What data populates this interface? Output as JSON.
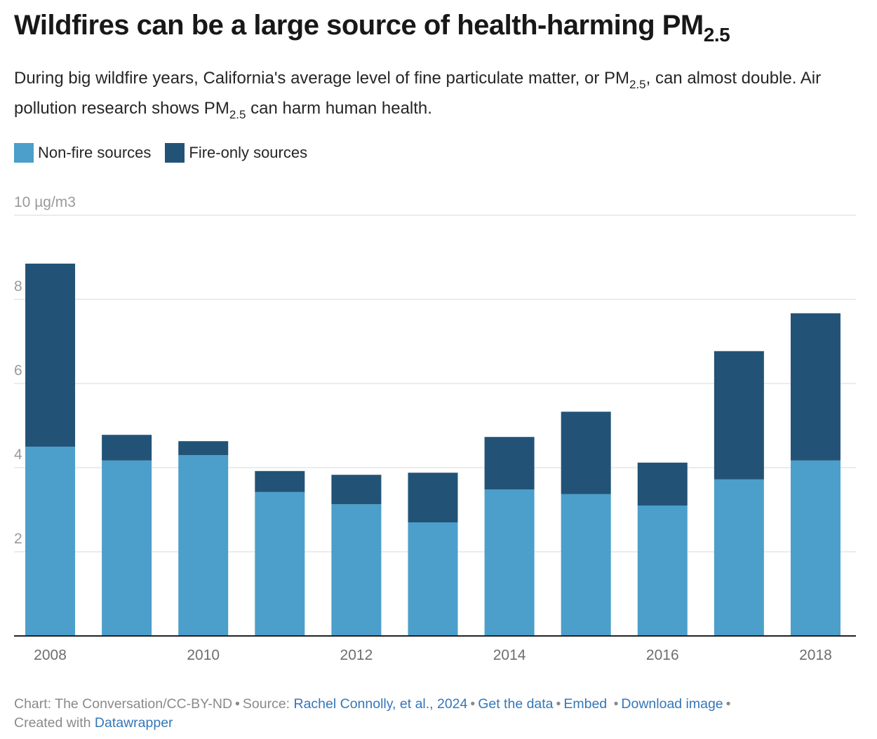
{
  "header": {
    "title_main": "Wildfires can be a large source of health-harming PM",
    "title_sub": "2.5",
    "subtitle_part1": "During big wildfire years, California's average level of fine particulate matter, or PM",
    "subtitle_sub1": "2.5",
    "subtitle_part2": ", can almost double. Air pollution research shows PM",
    "subtitle_sub2": "2.5",
    "subtitle_part3": " can harm human health."
  },
  "legend": [
    {
      "label": "Non-fire sources",
      "color": "#4b9fca"
    },
    {
      "label": "Fire-only sources",
      "color": "#225377"
    }
  ],
  "footer": {
    "chart_credit": "Chart: The Conversation/CC-BY-ND",
    "source_label": "Source:",
    "source_link": "Rachel Connolly, et al., 2024",
    "get_data": "Get the data",
    "embed": "Embed",
    "download": "Download image",
    "created_with": "Created with",
    "datawrapper": "Datawrapper"
  },
  "chart_data": {
    "type": "bar",
    "stacked": true,
    "title": "Wildfires can be a large source of health-harming PM2.5",
    "xlabel": "",
    "ylabel": "µg/m3",
    "ylim": [
      0,
      10
    ],
    "yticks": [
      2,
      4,
      6,
      8,
      10
    ],
    "ytick_labels": [
      "2",
      "4",
      "6",
      "8",
      "10 µg/m3"
    ],
    "grid": true,
    "legend_position": "top-left",
    "categories": [
      "2008",
      "2009",
      "2010",
      "2011",
      "2012",
      "2013",
      "2014",
      "2015",
      "2016",
      "2017",
      "2018"
    ],
    "xtick_labels": [
      "2008",
      "",
      "2010",
      "",
      "2012",
      "",
      "2014",
      "",
      "2016",
      "",
      "2018"
    ],
    "series": [
      {
        "name": "Non-fire sources",
        "color": "#4b9fca",
        "values": [
          4.5,
          4.17,
          4.3,
          3.42,
          3.13,
          2.7,
          3.48,
          3.37,
          3.1,
          3.72,
          4.17
        ]
      },
      {
        "name": "Fire-only sources",
        "color": "#225377",
        "values": [
          4.35,
          0.61,
          0.33,
          0.5,
          0.7,
          1.18,
          1.25,
          1.96,
          1.02,
          3.05,
          3.5
        ]
      }
    ]
  }
}
